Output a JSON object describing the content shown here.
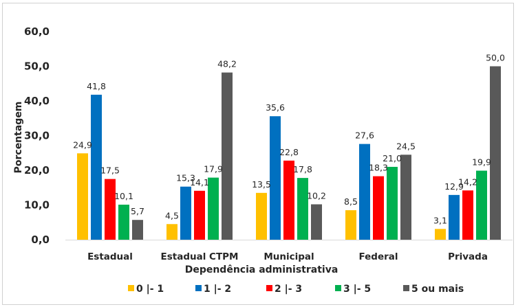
{
  "chart_data": {
    "type": "bar",
    "title": "",
    "xlabel": "Dependência administrativa",
    "ylabel": "Porcentagem",
    "ylim": [
      0,
      60
    ],
    "yticks": [
      0,
      10,
      20,
      30,
      40,
      50,
      60
    ],
    "ytick_labels": [
      "0,0",
      "10,0",
      "20,0",
      "30,0",
      "40,0",
      "50,0",
      "60,0"
    ],
    "grid": false,
    "legend_position": "bottom",
    "categories": [
      "Estadual",
      "Estadual CTPM",
      "Municipal",
      "Federal",
      "Privada"
    ],
    "series": [
      {
        "name": "0 |- 1",
        "color": "#FFC000",
        "values": [
          24.9,
          4.5,
          13.5,
          8.5,
          3.1
        ],
        "labels": [
          "24,9",
          "4,5",
          "13,5",
          "8,5",
          "3,1"
        ]
      },
      {
        "name": "1 |- 2",
        "color": "#0070C0",
        "values": [
          41.8,
          15.3,
          35.6,
          27.6,
          12.9
        ],
        "labels": [
          "41,8",
          "15,3",
          "35,6",
          "27,6",
          "12,9"
        ]
      },
      {
        "name": "2 |- 3",
        "color": "#FF0000",
        "values": [
          17.5,
          14.1,
          22.8,
          18.3,
          14.2
        ],
        "labels": [
          "17,5",
          "14,1",
          "22,8",
          "18,3",
          "14,2"
        ]
      },
      {
        "name": "3 |- 5",
        "color": "#00B050",
        "values": [
          10.1,
          17.9,
          17.8,
          21.0,
          19.9
        ],
        "labels": [
          "10,1",
          "17,9",
          "17,8",
          "21,0",
          "19,9"
        ]
      },
      {
        "name": "5 ou mais",
        "color": "#595959",
        "values": [
          5.7,
          48.2,
          10.2,
          24.5,
          50.0
        ],
        "labels": [
          "5,7",
          "48,2",
          "10,2",
          "24,5",
          "50,0"
        ]
      }
    ]
  }
}
